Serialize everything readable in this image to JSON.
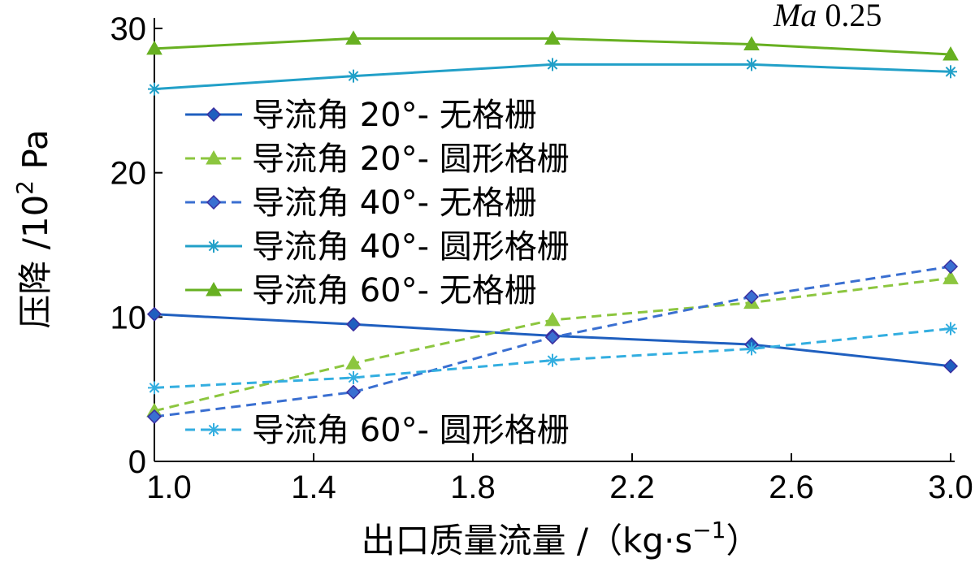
{
  "chart_data": {
    "type": "line",
    "annotation": {
      "italic": "Ma",
      "text": "0.25"
    },
    "xlabel": {
      "main": "出口质量流量 /（kg·s",
      "sup": "−1",
      "tail": "）"
    },
    "ylabel": {
      "main": "压降 /10",
      "sup": "2",
      "tail": " Pa"
    },
    "xlim": [
      1.0,
      3.0
    ],
    "ylim": [
      0,
      30
    ],
    "x_ticks": [
      "1.0",
      "1.4",
      "1.8",
      "2.2",
      "2.6",
      "3.0"
    ],
    "y_ticks": [
      "0",
      "10",
      "20",
      "30"
    ],
    "grid": false,
    "x": [
      1.0,
      1.5,
      2.0,
      2.5,
      3.0
    ],
    "series": [
      {
        "name": "导流角 20°- 无格栅",
        "values": [
          10.2,
          9.5,
          8.7,
          8.1,
          6.6
        ],
        "color": "#1f5fbf",
        "dash": "solid",
        "marker": "diamond"
      },
      {
        "name": "导流角 20°- 圆形格栅",
        "values": [
          3.5,
          6.8,
          9.8,
          11.0,
          12.7
        ],
        "color": "#8cc63f",
        "dash": "dashed",
        "marker": "triangle"
      },
      {
        "name": "导流角 40°- 无格栅",
        "values": [
          3.1,
          4.8,
          8.6,
          11.4,
          13.5
        ],
        "color": "#3a6fd1",
        "dash": "dashed",
        "marker": "diamond"
      },
      {
        "name": "导流角 40°- 圆形格栅",
        "values": [
          25.8,
          26.7,
          27.5,
          27.5,
          27.0
        ],
        "color": "#22a0c8",
        "dash": "solid",
        "marker": "star"
      },
      {
        "name": "导流角 60°- 无格栅",
        "values": [
          28.6,
          29.3,
          29.3,
          28.9,
          28.2
        ],
        "color": "#67b021",
        "dash": "solid",
        "marker": "triangle"
      },
      {
        "name": "导流角 60°- 圆形格栅",
        "values": [
          5.1,
          5.8,
          7.0,
          7.8,
          9.2
        ],
        "color": "#33aee0",
        "dash": "dashed",
        "marker": "star"
      }
    ]
  }
}
